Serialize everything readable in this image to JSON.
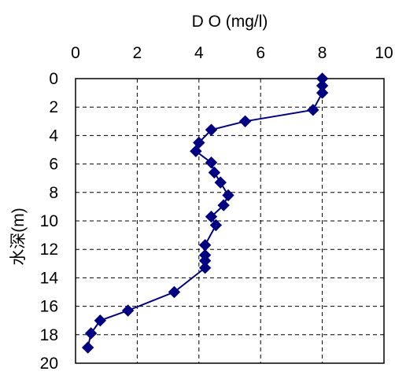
{
  "chart_data": {
    "type": "scatter",
    "title": "",
    "xlabel": "D O (mg/l)",
    "ylabel": "水深(m)",
    "x_ticks": [
      "0",
      "2",
      "4",
      "6",
      "8",
      "10"
    ],
    "y_ticks": [
      "0",
      "2",
      "4",
      "6",
      "8",
      "10",
      "12",
      "14",
      "16",
      "18",
      "20"
    ],
    "xlim": [
      0,
      10
    ],
    "ylim": [
      0,
      20
    ],
    "y_reversed": true,
    "x_axis_position": "top",
    "grid": true,
    "legend": "none",
    "series": [
      {
        "marker": "diamond",
        "color": "#000080",
        "points": [
          {
            "x": 8.0,
            "y": 0.0
          },
          {
            "x": 8.0,
            "y": 0.5
          },
          {
            "x": 8.0,
            "y": 1.0
          },
          {
            "x": 7.7,
            "y": 2.2
          },
          {
            "x": 5.5,
            "y": 3.0
          },
          {
            "x": 4.4,
            "y": 3.6
          },
          {
            "x": 4.0,
            "y": 4.5
          },
          {
            "x": 3.9,
            "y": 5.1
          },
          {
            "x": 4.4,
            "y": 5.9
          },
          {
            "x": 4.5,
            "y": 6.6
          },
          {
            "x": 4.7,
            "y": 7.3
          },
          {
            "x": 4.95,
            "y": 8.2
          },
          {
            "x": 4.8,
            "y": 8.9
          },
          {
            "x": 4.4,
            "y": 9.7
          },
          {
            "x": 4.55,
            "y": 10.3
          },
          {
            "x": 4.2,
            "y": 11.7
          },
          {
            "x": 4.2,
            "y": 12.4
          },
          {
            "x": 4.2,
            "y": 12.8
          },
          {
            "x": 4.2,
            "y": 13.3
          },
          {
            "x": 3.2,
            "y": 15.0
          },
          {
            "x": 1.7,
            "y": 16.3
          },
          {
            "x": 0.8,
            "y": 17.0
          },
          {
            "x": 0.5,
            "y": 17.9
          },
          {
            "x": 0.4,
            "y": 18.9
          }
        ]
      }
    ]
  }
}
